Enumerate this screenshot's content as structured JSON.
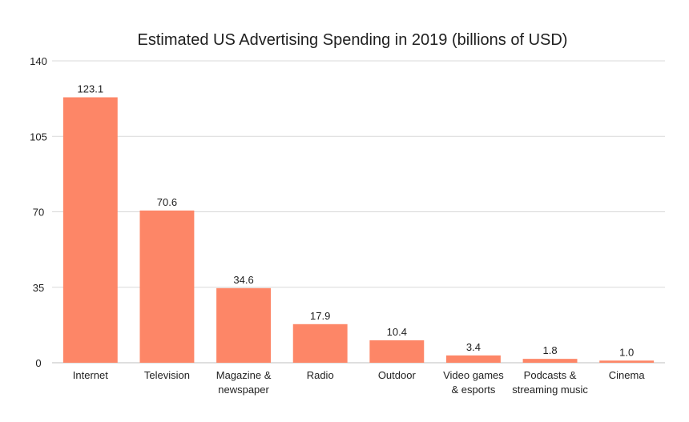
{
  "chart_data": {
    "type": "bar",
    "title": "Estimated US Advertising Spending in 2019 (billions of USD)",
    "xlabel": "",
    "ylabel": "",
    "categories": [
      [
        "Internet"
      ],
      [
        "Television"
      ],
      [
        "Magazine &",
        "newspaper"
      ],
      [
        "Radio"
      ],
      [
        "Outdoor"
      ],
      [
        "Video games",
        "& esports"
      ],
      [
        "Podcasts &",
        "streaming music"
      ],
      [
        "Cinema"
      ]
    ],
    "values": [
      123.1,
      70.6,
      34.6,
      17.9,
      10.4,
      3.4,
      1.8,
      1.0
    ],
    "value_labels": [
      "123.1",
      "70.6",
      "34.6",
      "17.9",
      "10.4",
      "3.4",
      "1.8",
      "1.0"
    ],
    "ylim": [
      0,
      140
    ],
    "yticks": [
      0,
      35,
      70,
      105,
      140
    ],
    "ytick_labels": [
      "0",
      "35",
      "70",
      "105",
      "140"
    ],
    "grid": true,
    "legend": "none",
    "bar_color": "#fd8667",
    "grid_color": "#d9d9d9",
    "text_color": "#1f1f1f"
  }
}
